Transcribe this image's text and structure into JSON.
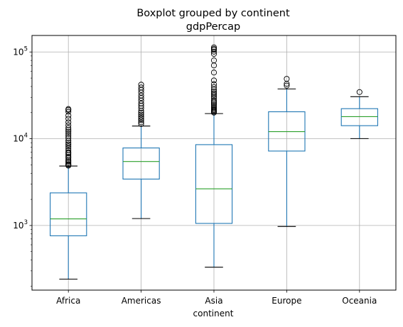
{
  "chart_data": {
    "type": "boxplot",
    "suptitle": "Boxplot grouped by continent",
    "title": "gdpPercap",
    "xlabel": "continent",
    "ylabel": "",
    "yscale": "log",
    "ylim": [
      180,
      155000
    ],
    "yticks": [
      {
        "value": 1000,
        "base": "10",
        "exp": "3"
      },
      {
        "value": 10000,
        "base": "10",
        "exp": "4"
      },
      {
        "value": 100000,
        "base": "10",
        "exp": "5"
      }
    ],
    "grid": true,
    "categories": [
      "Africa",
      "Americas",
      "Asia",
      "Europe",
      "Oceania"
    ],
    "boxes": [
      {
        "category": "Africa",
        "whisker_low": 241,
        "q1": 761,
        "median": 1192,
        "q3": 2377,
        "whisker_high": 4850,
        "outliers": [
          4900,
          5000,
          5100,
          5300,
          5500,
          5700,
          6000,
          6200,
          6500,
          6800,
          7000,
          7400,
          7800,
          8200,
          8600,
          9000,
          9500,
          10200,
          10800,
          11400,
          12000,
          12600,
          13300,
          14300,
          15500,
          17000,
          18500,
          20500,
          21500,
          22000
        ]
      },
      {
        "category": "Americas",
        "whisker_low": 1202,
        "q1": 3428,
        "median": 5466,
        "q3": 7830,
        "whisker_high": 14000,
        "outliers": [
          14800,
          15500,
          16400,
          17200,
          18000,
          19000,
          20000,
          21000,
          22500,
          24000,
          25500,
          27500,
          29500,
          31500,
          34000,
          36500,
          39000,
          42000
        ]
      },
      {
        "category": "Asia",
        "whisker_low": 331,
        "q1": 1057,
        "median": 2647,
        "q3": 8549,
        "whisker_high": 19500,
        "outliers": [
          20000,
          20500,
          21000,
          21500,
          22000,
          22800,
          23500,
          24500,
          25500,
          26500,
          27500,
          29000,
          30500,
          32000,
          33500,
          35000,
          37000,
          39500,
          42500,
          47000,
          58000,
          70000,
          80000,
          95000,
          101000,
          106000,
          109000,
          113000
        ]
      },
      {
        "category": "Europe",
        "whisker_low": 974,
        "q1": 7213,
        "median": 12082,
        "q3": 20461,
        "whisker_high": 37500,
        "outliers": [
          41000,
          43000,
          49000
        ]
      },
      {
        "category": "Oceania",
        "whisker_low": 10040,
        "q1": 14142,
        "median": 17983,
        "q3": 22214,
        "whisker_high": 30500,
        "outliers": [
          34500
        ]
      }
    ],
    "colors": {
      "box": "#1f77b4",
      "median": "#2ca02c",
      "grid": "#b0b0b0",
      "axes": "#000000"
    }
  }
}
